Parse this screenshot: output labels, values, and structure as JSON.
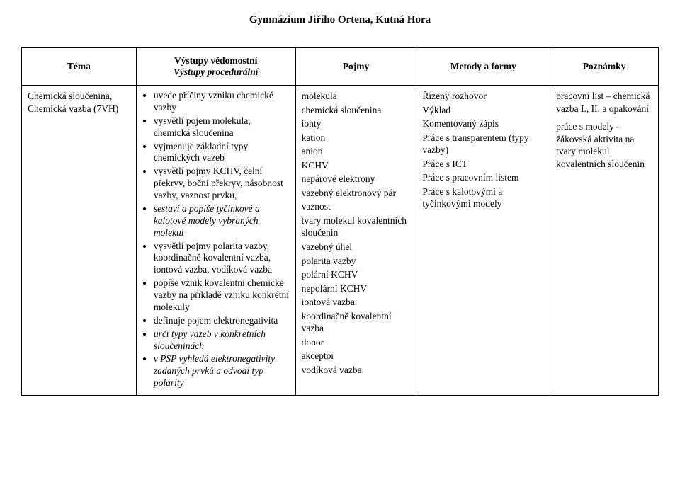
{
  "header": "Gymnázium Jiřího Ortena, Kutná Hora",
  "columns": {
    "c1": "Téma",
    "c2_line1": "Výstupy vědomostní",
    "c2_line2": "Výstupy procedurální",
    "c3": "Pojmy",
    "c4": "Metody a formy",
    "c5": "Poznámky"
  },
  "row": {
    "topic_line1": "Chemická sloučenina,",
    "topic_line2": "Chemická vazba (7VH)",
    "outputs": [
      {
        "text": "uvede příčiny vzniku chemické vazby"
      },
      {
        "text": "vysvětlí pojem molekula, chemická sloučenina"
      },
      {
        "text": "vyjmenuje základní typy chemických vazeb"
      },
      {
        "text": "vysvětlí pojmy KCHV, čelní překryv, boční překryv, násobnost vazby, vaznost prvku,"
      },
      {
        "text": "sestaví a popíše tyčinkové a kalotové modely vybraných molekul",
        "italic": true
      },
      {
        "text": "vysvětlí pojmy polarita vazby, koordinačně kovalentní vazba, iontová vazba, vodíková vazba"
      },
      {
        "text": "popíše vznik kovalentní chemické vazby na příkladě vzniku konkrétní molekuly"
      },
      {
        "text": "definuje pojem elektronegativita"
      },
      {
        "text": "určí typy vazeb v konkrétních sloučeninách",
        "italic": true
      },
      {
        "text": "v PSP vyhledá elektronegativity zadaných prvků a odvodí typ polarity",
        "italic": true
      }
    ],
    "terms": [
      "molekula",
      "chemická sloučenina",
      "ionty",
      "kation",
      "anion",
      "KCHV",
      "nepárové elektrony",
      "vazebný elektronový pár",
      "vaznost",
      "tvary molekul kovalentních sloučenin",
      "vazebný úhel",
      "polarita vazby",
      "polární KCHV",
      "nepolární KCHV",
      "iontová vazba",
      "koordinačně kovalentní vazba",
      "donor",
      "akceptor",
      "vodíková vazba"
    ],
    "methods": [
      "Řízený rozhovor",
      "Výklad",
      "Komentovaný zápis",
      "Práce s transparentem (typy vazby)",
      "Práce s ICT",
      "Práce s pracovním listem",
      "Práce s kalotovými a tyčinkovými modely"
    ],
    "notes": [
      "pracovní list – chemická vazba I., II. a opakování",
      "práce s modely – žákovská aktivita na tvary molekul kovalentních sloučenin"
    ]
  }
}
